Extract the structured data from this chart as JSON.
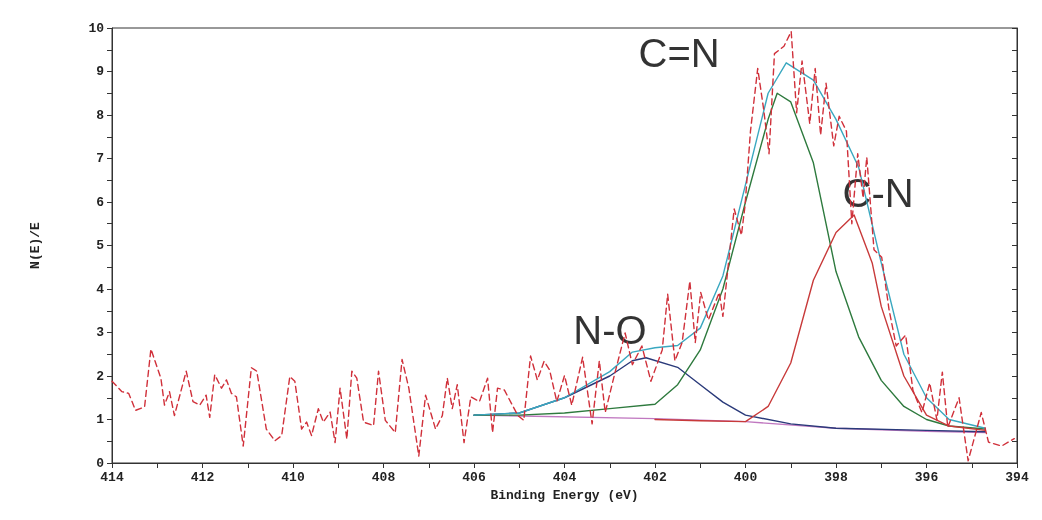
{
  "chart_data": {
    "type": "line",
    "xlabel": "Binding Energy (eV)",
    "ylabel": "N(E)/E",
    "xlim": [
      414,
      394
    ],
    "ylim": [
      0,
      10
    ],
    "xticks": [
      414,
      {
        "value": 413,
        "label": null
      },
      412,
      {
        "value": 411,
        "label": null
      },
      410,
      {
        "value": 409,
        "label": null
      },
      408,
      {
        "value": 407,
        "label": null
      },
      406,
      {
        "value": 405,
        "label": null
      },
      404,
      {
        "value": 403,
        "label": null
      },
      402,
      {
        "value": 401,
        "label": null
      },
      400,
      {
        "value": 399,
        "label": null
      },
      398,
      {
        "value": 397,
        "label": null
      },
      396,
      {
        "value": 395,
        "label": null
      },
      394
    ],
    "yticks": [
      0,
      {
        "value": 0.5,
        "label": null
      },
      1,
      {
        "value": 1.5,
        "label": null
      },
      2,
      {
        "value": 2.5,
        "label": null
      },
      3,
      {
        "value": 3.5,
        "label": null
      },
      4,
      {
        "value": 4.5,
        "label": null
      },
      5,
      {
        "value": 5.5,
        "label": null
      },
      6,
      {
        "value": 6.5,
        "label": null
      },
      7,
      {
        "value": 7.5,
        "label": null
      },
      8,
      {
        "value": 8.5,
        "label": null
      },
      9,
      {
        "value": 9.5,
        "label": null
      },
      10
    ],
    "grid": false,
    "marker": "none",
    "annotations": [
      {
        "text": "C=N",
        "x": 399.3,
        "y": 8.5
      },
      {
        "text": "C-N",
        "x": 397.6,
        "y": 5.7
      },
      {
        "text": "N-O",
        "x": 402.2,
        "y": 2.42
      }
    ],
    "series": [
      {
        "color": "#c078c0",
        "line_style": "solid",
        "x": [
          406,
          402,
          400,
          398,
          396,
          394.7
        ],
        "values": [
          1.1,
          1.02,
          0.95,
          0.8,
          0.73,
          0.7
        ]
      },
      {
        "color": "#2a3a7a",
        "line_style": "solid",
        "x": [
          406,
          405,
          404,
          403,
          402.5,
          402.2,
          401.5,
          401,
          400.5,
          400,
          399,
          398,
          396,
          394.7
        ],
        "values": [
          1.1,
          1.15,
          1.5,
          2.0,
          2.35,
          2.42,
          2.2,
          1.8,
          1.4,
          1.1,
          0.9,
          0.8,
          0.75,
          0.72
        ]
      },
      {
        "color": "#2e7a3e",
        "line_style": "solid",
        "x": [
          406,
          405,
          404,
          403,
          402,
          401.5,
          401,
          400.5,
          400,
          399.5,
          399.3,
          399,
          398.5,
          398,
          397.5,
          397,
          396.5,
          396,
          395.5,
          394.7
        ],
        "values": [
          1.1,
          1.1,
          1.15,
          1.25,
          1.35,
          1.8,
          2.6,
          4.0,
          6.0,
          7.9,
          8.5,
          8.3,
          6.9,
          4.4,
          2.9,
          1.9,
          1.3,
          1.0,
          0.85,
          0.78
        ]
      },
      {
        "color": "#c83a3a",
        "line_style": "solid",
        "x": [
          402,
          401,
          400,
          399.5,
          399,
          398.5,
          398,
          397.6,
          397.2,
          397,
          396.5,
          396,
          395.5,
          394.7
        ],
        "values": [
          1.0,
          0.97,
          0.95,
          1.3,
          2.3,
          4.2,
          5.3,
          5.7,
          4.6,
          3.6,
          2.0,
          1.1,
          0.85,
          0.75
        ]
      },
      {
        "color": "#3aa8c0",
        "line_style": "solid",
        "x": [
          406,
          405,
          404,
          403,
          402.5,
          402,
          401.5,
          401,
          400.5,
          400,
          399.5,
          399.1,
          398.5,
          398,
          397.5,
          397,
          396.5,
          396,
          395.5,
          394.7
        ],
        "values": [
          1.1,
          1.15,
          1.5,
          2.1,
          2.55,
          2.65,
          2.7,
          3.1,
          4.3,
          6.4,
          8.5,
          9.2,
          8.8,
          7.9,
          6.8,
          4.6,
          2.5,
          1.5,
          1.0,
          0.8
        ]
      },
      {
        "color": "#d0303a",
        "line_style": "dashed",
        "x": [
          414,
          413.78,
          413.63,
          413.48,
          413.28,
          413.14,
          412.92,
          412.84,
          412.73,
          412.62,
          412.36,
          412.21,
          412.06,
          411.92,
          411.84,
          411.73,
          411.58,
          411.47,
          411.36,
          411.25,
          411.1,
          410.92,
          410.8,
          410.59,
          410.4,
          410.25,
          410.07,
          409.96,
          409.81,
          409.7,
          409.59,
          409.44,
          409.33,
          409.18,
          409.07,
          408.96,
          408.81,
          408.7,
          408.59,
          408.44,
          408.22,
          408.11,
          407.96,
          407.74,
          407.59,
          407.44,
          407.22,
          407.07,
          406.85,
          406.7,
          406.59,
          406.48,
          406.37,
          406.22,
          406.07,
          405.88,
          405.7,
          405.59,
          405.48,
          405.33,
          405.03,
          404.9,
          404.75,
          404.6,
          404.45,
          404.33,
          404.17,
          404.0,
          403.84,
          403.6,
          403.39,
          403.23,
          403.1,
          402.9,
          402.66,
          402.5,
          402.29,
          402.09,
          401.84,
          401.72,
          401.56,
          401.4,
          401.23,
          401.11,
          400.99,
          400.82,
          400.58,
          400.5,
          400.25,
          400.09,
          400.01,
          399.89,
          399.73,
          399.6,
          399.48,
          399.36,
          399.15,
          398.99,
          398.87,
          398.75,
          398.58,
          398.46,
          398.34,
          398.22,
          398.05,
          397.93,
          397.77,
          397.65,
          397.52,
          397.4,
          397.32,
          397.16,
          396.99,
          396.83,
          396.67,
          396.46,
          396.3,
          396.1,
          395.93,
          395.77,
          395.65,
          395.53,
          395.28,
          395.08,
          394.79,
          394.63,
          394.34,
          394.06
        ],
        "values": [
          1.88,
          1.64,
          1.6,
          1.21,
          1.29,
          2.62,
          1.95,
          1.33,
          1.64,
          1.09,
          2.11,
          1.41,
          1.33,
          1.56,
          1.05,
          2.03,
          1.72,
          1.91,
          1.6,
          1.52,
          0.39,
          2.19,
          2.11,
          0.78,
          0.51,
          0.63,
          1.99,
          1.88,
          0.78,
          0.94,
          0.63,
          1.25,
          0.94,
          1.17,
          0.47,
          1.72,
          0.55,
          2.11,
          1.95,
          0.94,
          0.86,
          2.11,
          0.98,
          0.7,
          2.38,
          1.72,
          0.16,
          1.56,
          0.78,
          1.09,
          1.95,
          1.25,
          1.8,
          0.47,
          1.52,
          1.41,
          1.95,
          0.7,
          1.72,
          1.68,
          1.09,
          0.98,
          2.46,
          1.91,
          2.34,
          2.14,
          1.41,
          2.01,
          1.33,
          2.43,
          0.9,
          2.35,
          1.16,
          2.01,
          2.99,
          2.26,
          2.69,
          1.88,
          2.6,
          3.88,
          2.35,
          2.77,
          4.18,
          2.77,
          3.92,
          3.29,
          3.92,
          3.37,
          5.84,
          5.24,
          5.92,
          7.63,
          9.07,
          8.14,
          7.11,
          9.41,
          9.58,
          9.92,
          8.05,
          9.24,
          7.8,
          9.07,
          7.54,
          8.73,
          7.29,
          7.97,
          7.63,
          5.5,
          7.11,
          6.09,
          7.03,
          4.9,
          4.73,
          3.54,
          2.69,
          2.94,
          1.67,
          1.16,
          1.84,
          0.99,
          2.09,
          0.82,
          1.5,
          0.05,
          1.16,
          0.48,
          0.39,
          0.56
        ]
      }
    ]
  }
}
